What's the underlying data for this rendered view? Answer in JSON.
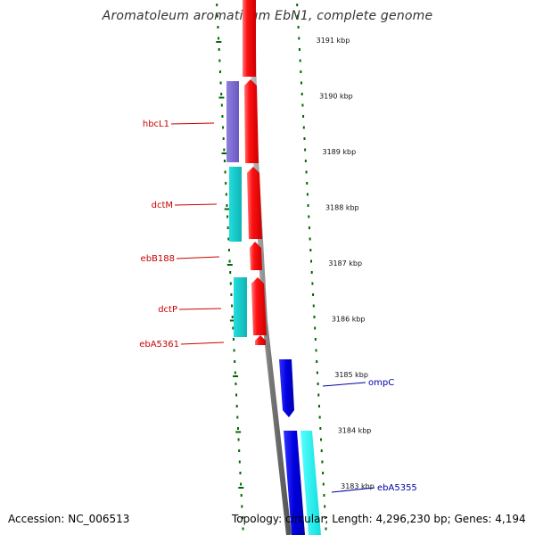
{
  "title": "Aromatoleum aromaticum EbN1, complete genome",
  "footer": {
    "accession": "Accession: NC_006513",
    "info": "Topology: circular; Length: 4,296,230 bp; Genes: 4,194"
  },
  "scale": {
    "unit": "kbp",
    "ticks": [
      {
        "kbp": 3191,
        "label": "3191 kbp"
      },
      {
        "kbp": 3190,
        "label": "3190 kbp"
      },
      {
        "kbp": 3189,
        "label": "3189 kbp"
      },
      {
        "kbp": 3188,
        "label": "3188 kbp"
      },
      {
        "kbp": 3187,
        "label": "3187 kbp"
      },
      {
        "kbp": 3186,
        "label": "3186 kbp"
      },
      {
        "kbp": 3185,
        "label": "3185 kbp"
      },
      {
        "kbp": 3184,
        "label": "3184 kbp"
      },
      {
        "kbp": 3183,
        "label": "3183 kbp"
      }
    ]
  },
  "colors": {
    "forward_cds": "#ee0000",
    "reverse_cds": "#0000dd",
    "tick": "#006600",
    "backbone": "#8a8a8a",
    "label_reverse_strand": "#cc0000",
    "label_forward_strand": "#0000aa",
    "purple_gene": "#7b68c8",
    "cyan_gene": "#19c9c9",
    "bright_cyan_gene": "#22eeee"
  },
  "gene_labels": [
    {
      "name": "hbcL1",
      "side": "left"
    },
    {
      "name": "dctM",
      "side": "left"
    },
    {
      "name": "ebB188",
      "side": "left"
    },
    {
      "name": "dctP",
      "side": "left"
    },
    {
      "name": "ebA5361",
      "side": "left"
    },
    {
      "name": "ompC",
      "side": "right"
    },
    {
      "name": "ebA5355",
      "side": "right"
    }
  ]
}
